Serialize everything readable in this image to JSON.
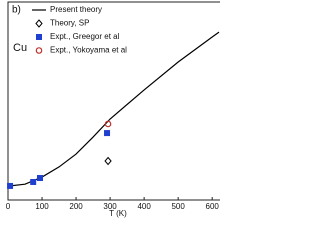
{
  "chart_data": {
    "type": "line",
    "annotations": [
      "b)",
      "Cu"
    ],
    "xlabel": "T (K)",
    "xlim": [
      0,
      620
    ],
    "xticks": [
      0,
      100,
      200,
      300,
      400,
      500,
      600
    ],
    "ylim": [
      0,
      1
    ],
    "legend": "top-left",
    "series": [
      {
        "name": "Present theory",
        "marker": "line",
        "color": "#000000",
        "x": [
          0,
          50,
          100,
          150,
          200,
          250,
          300,
          400,
          500,
          600,
          620
        ],
        "values": [
          0.07,
          0.08,
          0.116,
          0.167,
          0.232,
          0.318,
          0.409,
          0.556,
          0.697,
          0.823,
          0.848
        ]
      },
      {
        "name": "Theory, SP",
        "marker": "diamond",
        "color": "#000000",
        "x": [
          294
        ],
        "values": [
          0.197
        ]
      },
      {
        "name": "Expt., Greegor et al",
        "marker": "square",
        "color": "#1f3fd0",
        "x": [
          6,
          74,
          94,
          291
        ],
        "values": [
          0.071,
          0.091,
          0.111,
          0.338
        ]
      },
      {
        "name": "Expt., Yokoyama et al",
        "marker": "circle",
        "color": "#c0302a",
        "x": [
          294
        ],
        "values": [
          0.384
        ]
      }
    ]
  }
}
